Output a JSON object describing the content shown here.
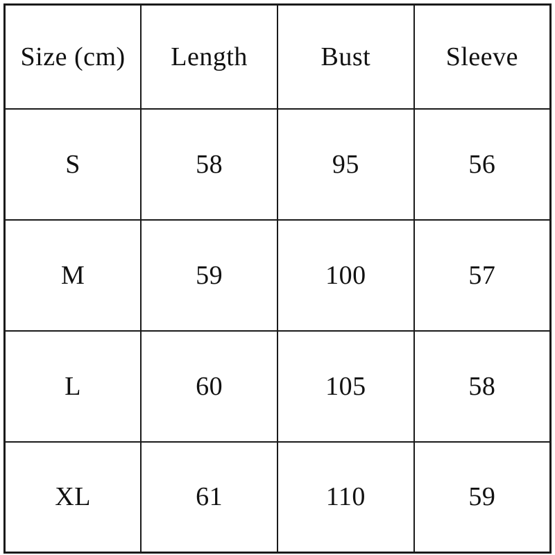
{
  "page": {
    "background_color": "#ffffff",
    "border_color": "#1a1a1a",
    "text_color": "#111111"
  },
  "table": {
    "columns": [
      "Size (cm)",
      "Length",
      "Bust",
      "Sleeve"
    ],
    "rows": [
      [
        "S",
        "58",
        "95",
        "56"
      ],
      [
        "M",
        "59",
        "100",
        "57"
      ],
      [
        "L",
        "60",
        "105",
        "58"
      ],
      [
        "XL",
        "61",
        "110",
        "59"
      ]
    ]
  }
}
